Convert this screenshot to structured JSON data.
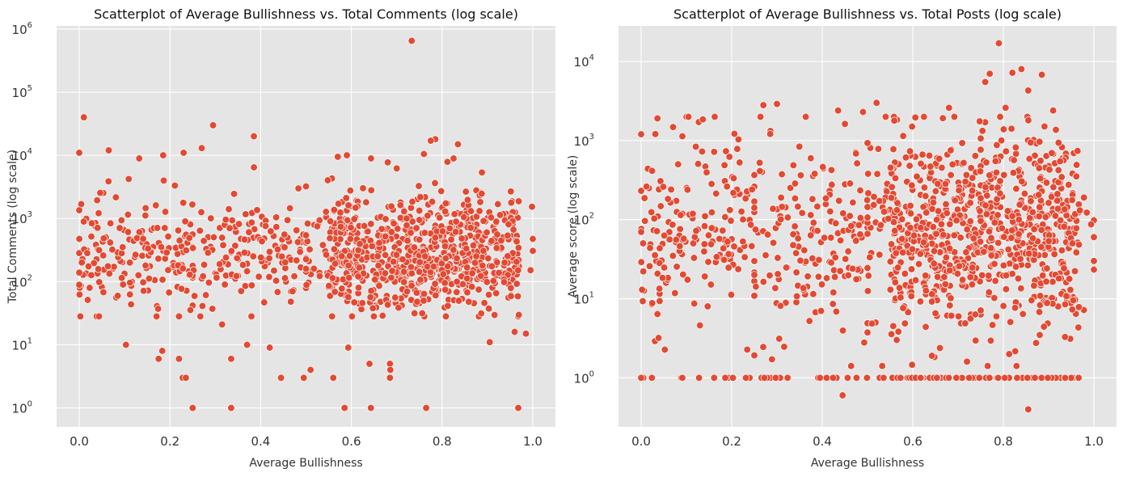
{
  "chart_data": [
    {
      "type": "scatter",
      "title": "Scatterplot of Average Bullishness vs. Total Comments (log scale)",
      "xlabel": "Average Bullishness",
      "ylabel": "Total Comments (log scale)",
      "xlim": [
        -0.05,
        1.05
      ],
      "ylim_log10": [
        -0.3,
        6.05
      ],
      "yscale": "log",
      "grid": true,
      "marker_color": "#e24a33",
      "x_ticks": [
        0.0,
        0.2,
        0.4,
        0.6,
        0.8,
        1.0
      ],
      "x_tick_labels": [
        "0.0",
        "0.2",
        "0.4",
        "0.6",
        "0.8",
        "1.0"
      ],
      "y_ticks_exp": [
        0,
        1,
        2,
        3,
        4,
        5,
        6
      ],
      "y_tick_base": "10",
      "y_tick_exponents": [
        "0",
        "1",
        "2",
        "3",
        "4",
        "5",
        "6"
      ],
      "outlier_points": [
        {
          "x": 0.733,
          "y": 650000
        },
        {
          "x": 0.01,
          "y": 40000
        },
        {
          "x": 0.295,
          "y": 30000
        },
        {
          "x": 0.385,
          "y": 20000
        },
        {
          "x": 0.0,
          "y": 11000
        },
        {
          "x": 0.065,
          "y": 12000
        },
        {
          "x": 0.27,
          "y": 13000
        },
        {
          "x": 0.23,
          "y": 11000
        },
        {
          "x": 0.785,
          "y": 18000
        },
        {
          "x": 0.835,
          "y": 15000
        },
        {
          "x": 0.775,
          "y": 17000
        },
        {
          "x": 0.185,
          "y": 10000
        },
        {
          "x": 0.59,
          "y": 10000
        },
        {
          "x": 0.57,
          "y": 9500
        },
        {
          "x": 0.76,
          "y": 10500
        },
        {
          "x": 0.103,
          "y": 10
        },
        {
          "x": 0.175,
          "y": 6
        },
        {
          "x": 0.183,
          "y": 8
        },
        {
          "x": 0.22,
          "y": 6
        },
        {
          "x": 0.228,
          "y": 3
        },
        {
          "x": 0.235,
          "y": 3
        },
        {
          "x": 0.25,
          "y": 1
        },
        {
          "x": 0.335,
          "y": 1
        },
        {
          "x": 0.335,
          "y": 6
        },
        {
          "x": 0.315,
          "y": 21
        },
        {
          "x": 0.37,
          "y": 10
        },
        {
          "x": 0.42,
          "y": 9
        },
        {
          "x": 0.445,
          "y": 3
        },
        {
          "x": 0.495,
          "y": 3
        },
        {
          "x": 0.51,
          "y": 4
        },
        {
          "x": 0.56,
          "y": 3
        },
        {
          "x": 0.585,
          "y": 1
        },
        {
          "x": 0.593,
          "y": 9
        },
        {
          "x": 0.64,
          "y": 5
        },
        {
          "x": 0.643,
          "y": 1
        },
        {
          "x": 0.685,
          "y": 5
        },
        {
          "x": 0.685,
          "y": 3
        },
        {
          "x": 0.686,
          "y": 4
        },
        {
          "x": 0.765,
          "y": 1
        },
        {
          "x": 0.905,
          "y": 11
        },
        {
          "x": 0.968,
          "y": 1
        },
        {
          "x": 0.985,
          "y": 15
        },
        {
          "x": 0.96,
          "y": 16
        }
      ],
      "bulk_points": {
        "count": 1100,
        "description_range_y": [
          30,
          8000
        ],
        "distribution": "dense cluster centered near y≈300, concentrated for x in 0.55–0.95"
      }
    },
    {
      "type": "scatter",
      "title": "Scatterplot of Average Bullishness vs. Total Posts (log scale)",
      "xlabel": "Average Bullishness",
      "ylabel": "Average score (log scale)",
      "xlim": [
        -0.05,
        1.05
      ],
      "ylim_log10": [
        -0.62,
        4.45
      ],
      "yscale": "log",
      "grid": true,
      "marker_color": "#e24a33",
      "x_ticks": [
        0.0,
        0.2,
        0.4,
        0.6,
        0.8,
        1.0
      ],
      "x_tick_labels": [
        "0.0",
        "0.2",
        "0.4",
        "0.6",
        "0.8",
        "1.0"
      ],
      "y_ticks_exp": [
        0,
        1,
        2,
        3,
        4
      ],
      "y_tick_base": "10",
      "y_tick_exponents": [
        "0",
        "1",
        "2",
        "3",
        "4"
      ],
      "outlier_points": [
        {
          "x": 0.79,
          "y": 17000
        },
        {
          "x": 0.84,
          "y": 8000
        },
        {
          "x": 0.82,
          "y": 7200
        },
        {
          "x": 0.77,
          "y": 7000
        },
        {
          "x": 0.885,
          "y": 6800
        },
        {
          "x": 0.76,
          "y": 5500
        },
        {
          "x": 0.855,
          "y": 4300
        },
        {
          "x": 0.3,
          "y": 2900
        },
        {
          "x": 0.27,
          "y": 2800
        },
        {
          "x": 0.52,
          "y": 3000
        },
        {
          "x": 0.435,
          "y": 2400
        },
        {
          "x": 0.49,
          "y": 2300
        },
        {
          "x": 0.68,
          "y": 2600
        },
        {
          "x": 0.805,
          "y": 2600
        },
        {
          "x": 0.91,
          "y": 2400
        },
        {
          "x": 0.0,
          "y": 1200
        },
        {
          "x": 0.445,
          "y": 0.6
        },
        {
          "x": 0.855,
          "y": 0.4
        },
        {
          "x": 0.54,
          "y": 2000
        }
      ],
      "bulk_points": {
        "count": 1300,
        "description_range_y": [
          1,
          2000
        ],
        "distribution": "dense cluster centered near y≈80, concentrated for x in 0.55–0.95; a row of points at y=1"
      }
    }
  ]
}
